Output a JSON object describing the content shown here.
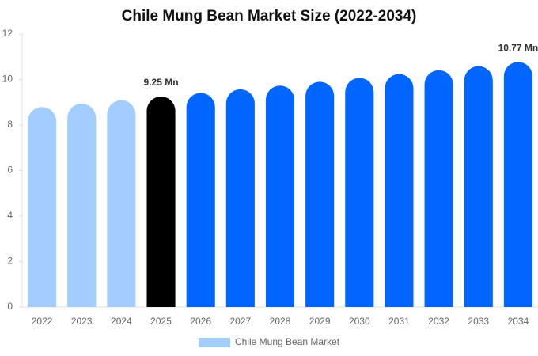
{
  "chart_data": {
    "type": "bar",
    "title": "Chile Mung Bean Market Size (2022-2034)",
    "categories": [
      "2022",
      "2023",
      "2024",
      "2025",
      "2026",
      "2027",
      "2028",
      "2029",
      "2030",
      "2031",
      "2032",
      "2033",
      "2034"
    ],
    "series": [
      {
        "name": "Chile Mung Bean Market",
        "color": "#a3cdfe",
        "colors": [
          "#a3cdfe",
          "#a3cdfe",
          "#a3cdfe",
          "#000000",
          "#0066ff",
          "#0066ff",
          "#0066ff",
          "#0066ff",
          "#0066ff",
          "#0066ff",
          "#0066ff",
          "#0066ff",
          "#0066ff"
        ],
        "values": [
          8.79,
          8.94,
          9.09,
          9.25,
          9.41,
          9.57,
          9.73,
          9.9,
          10.07,
          10.24,
          10.41,
          10.59,
          10.77
        ],
        "value_labels": [
          null,
          null,
          null,
          "9.25 Mn",
          null,
          null,
          null,
          null,
          null,
          null,
          null,
          null,
          "10.77 Mn"
        ]
      }
    ],
    "ylim": [
      0,
      12
    ],
    "yticks": [
      0,
      2,
      4,
      6,
      8,
      10,
      12
    ],
    "grid": false,
    "legend": "bottom"
  }
}
